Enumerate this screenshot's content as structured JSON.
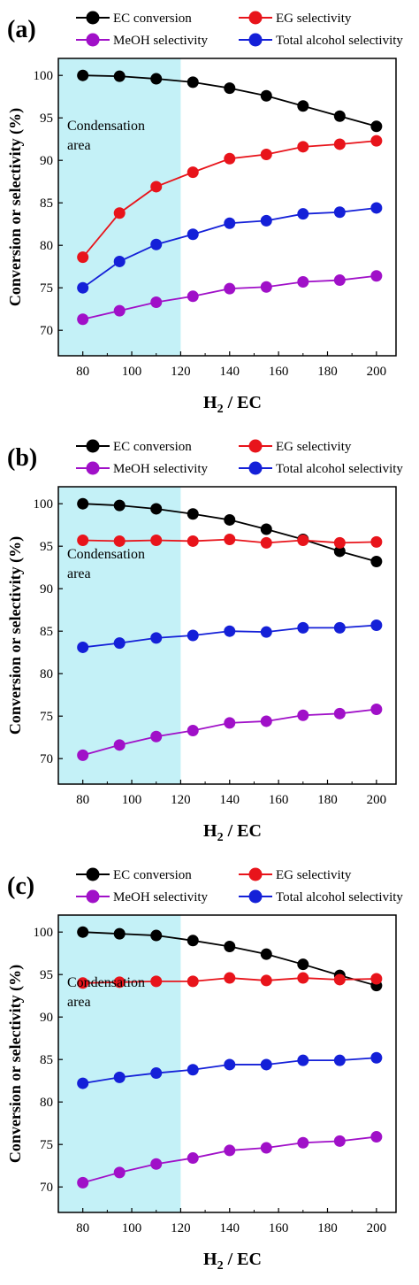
{
  "shared": {
    "xlabel_main": "H",
    "xlabel_sub": "2",
    "xlabel_rest": " / EC",
    "ylabel": "Conversion or selectivity (%)",
    "area_label_line1": "Condensation",
    "area_label_line2": "area",
    "x_ticks": [
      "80",
      "100",
      "120",
      "140",
      "160",
      "180",
      "200"
    ],
    "y_ticks": [
      "70",
      "75",
      "80",
      "85",
      "90",
      "95",
      "100"
    ],
    "legend": [
      {
        "name": "EC conversion",
        "color": "#000000"
      },
      {
        "name": "EG selectivity",
        "color": "#e8141b"
      },
      {
        "name": "MeOH selectivity",
        "color": "#a010c8"
      },
      {
        "name": "Total alcohol selectivity",
        "color": "#1420d8"
      }
    ],
    "area_color": "#c4f1f7"
  },
  "chart_data": [
    {
      "type": "line",
      "panel_label": "(a)",
      "xlabel": "H2 / EC",
      "ylabel": "Conversion or selectivity (%)",
      "xlim": [
        70,
        208
      ],
      "ylim": [
        67,
        102
      ],
      "shaded_region_x": [
        70,
        120
      ],
      "x": [
        80,
        95,
        110,
        125,
        140,
        155,
        170,
        185,
        200
      ],
      "series": [
        {
          "name": "EC conversion",
          "color": "#000000",
          "values": [
            100.0,
            99.9,
            99.6,
            99.2,
            98.5,
            97.6,
            96.4,
            95.2,
            94.0
          ]
        },
        {
          "name": "EG selectivity",
          "color": "#e8141b",
          "values": [
            78.6,
            83.8,
            86.9,
            88.6,
            90.2,
            90.7,
            91.6,
            91.9,
            92.3
          ]
        },
        {
          "name": "MeOH selectivity",
          "color": "#a010c8",
          "values": [
            71.3,
            72.3,
            73.3,
            74.0,
            74.9,
            75.1,
            75.7,
            75.9,
            76.4
          ]
        },
        {
          "name": "Total alcohol selectivity",
          "color": "#1420d8",
          "values": [
            75.0,
            78.1,
            80.1,
            81.3,
            82.6,
            82.9,
            83.7,
            83.9,
            84.4
          ]
        }
      ]
    },
    {
      "type": "line",
      "panel_label": "(b)",
      "xlabel": "H2 / EC",
      "ylabel": "Conversion or selectivity (%)",
      "xlim": [
        70,
        208
      ],
      "ylim": [
        67,
        102
      ],
      "shaded_region_x": [
        70,
        120
      ],
      "x": [
        80,
        95,
        110,
        125,
        140,
        155,
        170,
        185,
        200
      ],
      "series": [
        {
          "name": "EC conversion",
          "color": "#000000",
          "values": [
            100.0,
            99.8,
            99.4,
            98.8,
            98.1,
            97.0,
            95.8,
            94.4,
            93.2
          ]
        },
        {
          "name": "EG selectivity",
          "color": "#e8141b",
          "values": [
            95.7,
            95.6,
            95.7,
            95.6,
            95.8,
            95.4,
            95.7,
            95.4,
            95.5
          ]
        },
        {
          "name": "MeOH selectivity",
          "color": "#a010c8",
          "values": [
            70.4,
            71.6,
            72.6,
            73.3,
            74.2,
            74.4,
            75.1,
            75.3,
            75.8
          ]
        },
        {
          "name": "Total alcohol selectivity",
          "color": "#1420d8",
          "values": [
            83.1,
            83.6,
            84.2,
            84.5,
            85.0,
            84.9,
            85.4,
            85.4,
            85.7
          ]
        }
      ]
    },
    {
      "type": "line",
      "panel_label": "(c)",
      "xlabel": "H2 / EC",
      "ylabel": "Conversion or selectivity (%)",
      "xlim": [
        70,
        208
      ],
      "ylim": [
        67,
        102
      ],
      "shaded_region_x": [
        70,
        120
      ],
      "x": [
        80,
        95,
        110,
        125,
        140,
        155,
        170,
        185,
        200
      ],
      "series": [
        {
          "name": "EC conversion",
          "color": "#000000",
          "values": [
            100.0,
            99.8,
            99.6,
            99.0,
            98.3,
            97.4,
            96.2,
            94.9,
            93.7
          ]
        },
        {
          "name": "EG selectivity",
          "color": "#e8141b",
          "values": [
            94.0,
            94.1,
            94.2,
            94.2,
            94.6,
            94.3,
            94.6,
            94.4,
            94.5
          ]
        },
        {
          "name": "MeOH selectivity",
          "color": "#a010c8",
          "values": [
            70.5,
            71.7,
            72.7,
            73.4,
            74.3,
            74.6,
            75.2,
            75.4,
            75.9
          ]
        },
        {
          "name": "Total alcohol selectivity",
          "color": "#1420d8",
          "values": [
            82.2,
            82.9,
            83.4,
            83.8,
            84.4,
            84.4,
            84.9,
            84.9,
            85.2
          ]
        }
      ]
    }
  ]
}
